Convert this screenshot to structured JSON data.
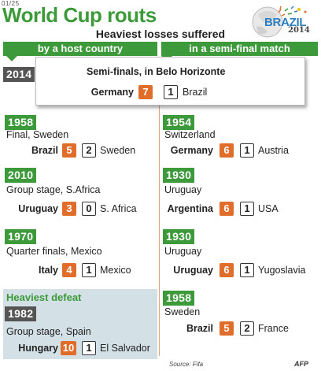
{
  "corner_id": "01/25",
  "title": "World Cup routs",
  "subtitle": "Heaviest losses suffered",
  "logo": {
    "text": "BRAZIL",
    "year": "2014",
    "icon": "world-cup-ball-logo"
  },
  "columns": {
    "left": "by a host country",
    "right": "in a semi-final match"
  },
  "feature": {
    "year": "2014",
    "context": "Semi-finals, in Belo Horizonte",
    "winner": "Germany",
    "winner_score": "7",
    "loser": "Brazil",
    "loser_score": "1"
  },
  "left_matches": [
    {
      "year": "1958",
      "context": "Final, Sweden",
      "winner": "Brazil",
      "winner_score": "5",
      "loser_score": "2",
      "loser": "Sweden"
    },
    {
      "year": "2010",
      "context": "Group stage, S.Africa",
      "winner": "Uruguay",
      "winner_score": "3",
      "loser_score": "0",
      "loser": "S. Africa"
    },
    {
      "year": "1970",
      "context": "Quarter finals, Mexico",
      "winner": "Italy",
      "winner_score": "4",
      "loser_score": "1",
      "loser": "Mexico"
    }
  ],
  "heaviest": {
    "label": "Heaviest defeat",
    "year": "1982",
    "context": "Group stage, Spain",
    "winner": "Hungary",
    "winner_score": "10",
    "loser_score": "1",
    "loser": "El Salvador"
  },
  "right_matches": [
    {
      "year": "1954",
      "context": "Switzerland",
      "winner": "Germany",
      "winner_score": "6",
      "loser_score": "1",
      "loser": "Austria"
    },
    {
      "year": "1930",
      "context": "Uruguay",
      "winner": "Argentina",
      "winner_score": "6",
      "loser_score": "1",
      "loser": "USA"
    },
    {
      "year": "1930",
      "context": "Uruguay",
      "winner": "Uruguay",
      "winner_score": "6",
      "loser_score": "1",
      "loser": "Yugoslavia"
    },
    {
      "year": "1958",
      "context": "Sweden",
      "winner": "Brazil",
      "winner_score": "5",
      "loser_score": "2",
      "loser": "France"
    }
  ],
  "source": "Source: Fifa",
  "credit": "AFP",
  "colors": {
    "green": "#3d9a3a",
    "orange": "#e06d2a",
    "dark_grey": "#555555",
    "panel": "#d3e0e6"
  }
}
